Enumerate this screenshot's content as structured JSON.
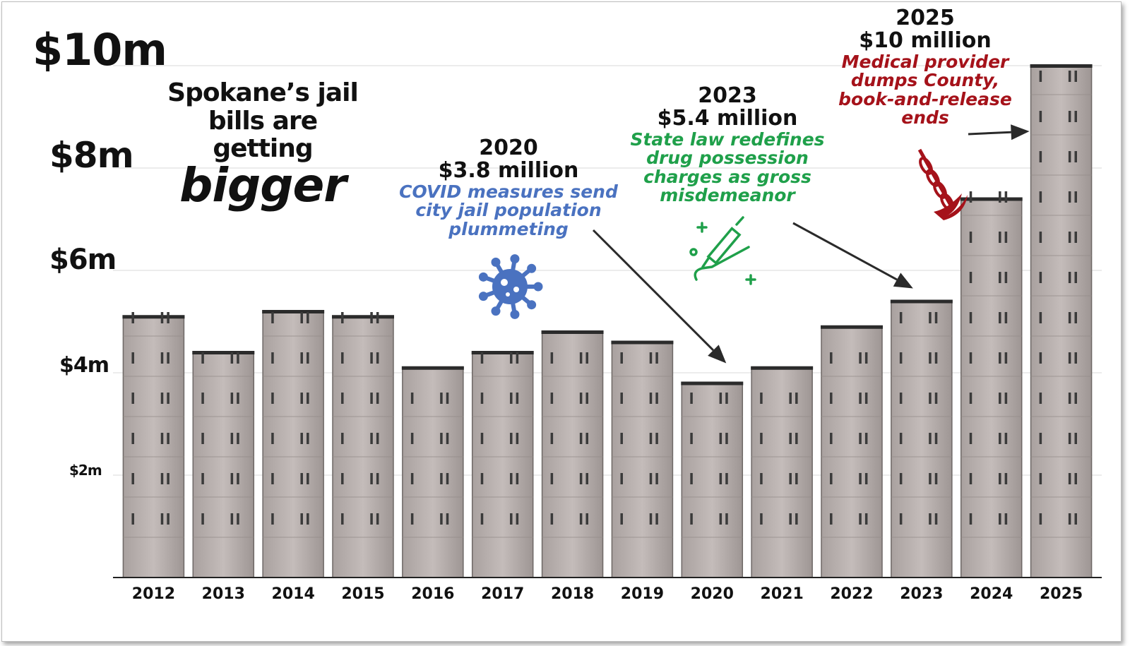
{
  "chart_data": {
    "type": "bar",
    "title": "Spokane’s jail bills are getting",
    "title_emphasis": "bigger",
    "categories": [
      "2012",
      "2013",
      "2014",
      "2015",
      "2016",
      "2017",
      "2018",
      "2019",
      "2020",
      "2021",
      "2022",
      "2023",
      "2024",
      "2025"
    ],
    "values": [
      5.1,
      4.4,
      5.2,
      5.1,
      4.1,
      4.4,
      4.8,
      4.6,
      3.8,
      4.1,
      4.9,
      5.4,
      7.4,
      10.0
    ],
    "ylim": [
      0,
      10
    ],
    "y_ticks": [
      {
        "value": 2,
        "label": "$2m"
      },
      {
        "value": 4,
        "label": "$4m"
      },
      {
        "value": 6,
        "label": "$6m"
      },
      {
        "value": 8,
        "label": "$8m"
      },
      {
        "value": 10,
        "label": "$10m"
      }
    ],
    "xlabel": "",
    "ylabel": "",
    "grid": true,
    "bar_style": "jail building facade",
    "annotations": [
      {
        "year": "2020",
        "amount": "$3.8 million",
        "note": "COVID measures send city jail population plummeting",
        "color": "#4a72c0",
        "icon": "virus-icon"
      },
      {
        "year": "2023",
        "amount": "$5.4 million",
        "note": "State law redefines drug possession charges as gross misdemeanor",
        "color": "#1fa04a",
        "icon": "syringe-icon"
      },
      {
        "year": "2025",
        "amount": "$10 million",
        "note": "Medical provider dumps County, book-and-release ends",
        "color": "#a5121a",
        "icon": "caduceus-icon"
      }
    ]
  }
}
